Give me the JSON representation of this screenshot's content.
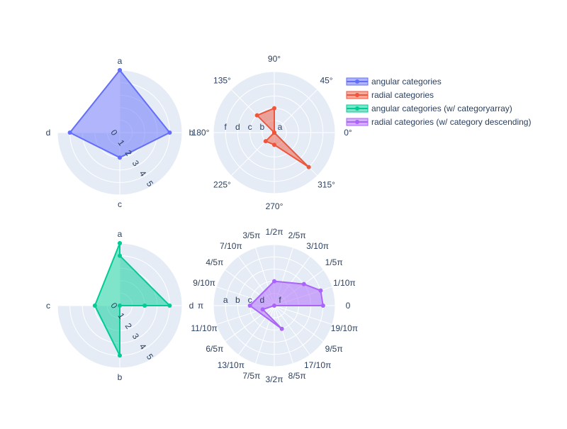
{
  "colors": {
    "plot_bg": "#e5ecf6",
    "grid": "#ffffff",
    "text": "#2a3f5f"
  },
  "legend": {
    "placement": "top-right",
    "items": [
      {
        "label": "angular categories",
        "color": "#636efa"
      },
      {
        "label": "radial categories",
        "color": "#ef553b"
      },
      {
        "label": "angular categories (w/ categoryarray)",
        "color": "#00cc96"
      },
      {
        "label": "radial categories (w/ category descending)",
        "color": "#ab63fa"
      }
    ]
  },
  "chart_data": [
    {
      "type": "polar",
      "series_name": "angular categories",
      "color": "#636efa",
      "fill": "toself",
      "angular_axis": {
        "type": "category",
        "categories": [
          "a",
          "b",
          "c",
          "d"
        ],
        "labels": [
          "a",
          "b",
          "c",
          "d"
        ],
        "direction": "clockwise",
        "rotation_deg": 90,
        "sector_deg": [
          -45,
          270
        ]
      },
      "radial_axis": {
        "range": [
          0,
          5
        ],
        "tick_labels": [
          "0",
          "1",
          "2",
          "3",
          "4",
          "5"
        ]
      },
      "theta": [
        "a",
        "b",
        "c",
        "d",
        "a"
      ],
      "r": [
        5,
        4,
        2,
        4,
        5
      ]
    },
    {
      "type": "polar",
      "series_name": "radial categories",
      "color": "#ef553b",
      "fill": "toself",
      "angular_axis": {
        "type": "degrees",
        "labels": [
          "0°",
          "45°",
          "90°",
          "135°",
          "180°",
          "225°",
          "270°",
          "315°"
        ]
      },
      "radial_axis": {
        "type": "category",
        "categories": [
          "a",
          "b",
          "c",
          "d",
          "f"
        ],
        "tick_labels": [
          "a",
          "b",
          "c",
          "d",
          "f"
        ]
      },
      "theta": [
        0,
        45,
        90,
        135,
        180,
        225,
        270,
        315
      ],
      "r": [
        "a",
        "a",
        "c",
        "c",
        "a",
        "b",
        "b",
        "f"
      ]
    },
    {
      "type": "polar",
      "series_name": "angular categories (w/ categoryarray)",
      "color": "#00cc96",
      "fill": "toself",
      "angular_axis": {
        "type": "category",
        "categories": [
          "a",
          "d",
          "b",
          "c"
        ],
        "labels": [
          "a",
          "d",
          "b",
          "c"
        ],
        "direction": "clockwise",
        "rotation_deg": 90,
        "sector_deg": [
          -45,
          270
        ]
      },
      "radial_axis": {
        "range": [
          0,
          5
        ],
        "tick_labels": [
          "0",
          "1",
          "2",
          "3",
          "4",
          "5"
        ]
      },
      "theta": [
        "a",
        "a",
        "d",
        "d",
        "d",
        "b",
        "c",
        "a"
      ],
      "r": [
        5,
        4,
        4,
        2,
        0,
        4,
        2,
        5
      ]
    },
    {
      "type": "polar",
      "series_name": "radial categories (w/ category descending)",
      "color": "#ab63fa",
      "fill": "toself",
      "angular_axis": {
        "type": "radians",
        "labels": [
          "0",
          "1/10π",
          "1/5π",
          "3/10π",
          "2/5π",
          "1/2π",
          "3/5π",
          "7/10π",
          "4/5π",
          "9/10π",
          "π",
          "11/10π",
          "6/5π",
          "13/10π",
          "7/5π",
          "3/2π",
          "8/5π",
          "17/10π",
          "9/5π",
          "19/10π"
        ]
      },
      "radial_axis": {
        "type": "category",
        "categories": [
          "a",
          "b",
          "c",
          "d",
          "f"
        ],
        "order": "descending",
        "tick_labels": [
          "a",
          "b",
          "c",
          "d",
          "f"
        ]
      },
      "theta_deg": [
        0,
        18,
        36,
        90,
        180,
        288,
        198,
        0
      ],
      "r": [
        "a",
        "a",
        "b",
        "c",
        "c",
        "c",
        "d",
        "f"
      ]
    }
  ]
}
